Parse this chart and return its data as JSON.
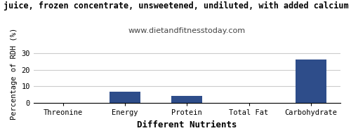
{
  "title": "juice, frozen concentrate, unsweetened, undiluted, with added calcium p",
  "subtitle": "www.dietandfitnesstoday.com",
  "xlabel": "Different Nutrients",
  "ylabel": "Percentage of RDH (%)",
  "categories": [
    "Threonine",
    "Energy",
    "Protein",
    "Total Fat",
    "Carbohydrate"
  ],
  "values": [
    0.0,
    7.0,
    4.5,
    0.3,
    26.0
  ],
  "bar_color": "#2e4d8a",
  "ylim": [
    0,
    35
  ],
  "yticks": [
    0,
    10,
    20,
    30
  ],
  "title_fontsize": 8.5,
  "subtitle_fontsize": 8,
  "xlabel_fontsize": 9,
  "ylabel_fontsize": 7.5,
  "tick_fontsize": 7.5,
  "background_color": "#ffffff",
  "grid_color": "#cccccc"
}
